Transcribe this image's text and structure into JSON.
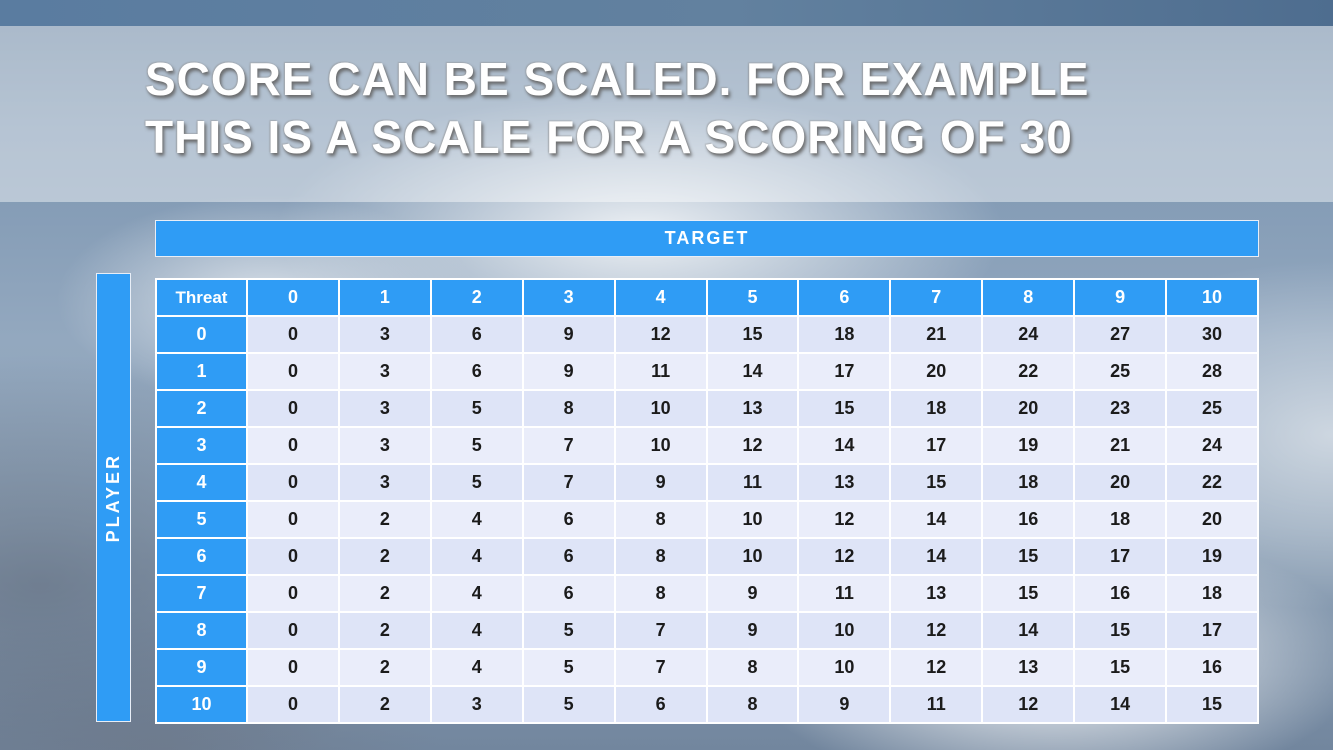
{
  "slide": {
    "title_line1": "SCORE CAN BE SCALED. FOR EXAMPLE",
    "title_line2": "THIS IS A SCALE FOR A SCORING OF 30"
  },
  "table": {
    "target_label": "TARGET",
    "player_label": "PLAYER",
    "corner_label": "Threat",
    "col_headers": [
      "0",
      "1",
      "2",
      "3",
      "4",
      "5",
      "6",
      "7",
      "8",
      "9",
      "10"
    ],
    "rows": [
      {
        "threat": "0",
        "values": [
          0,
          3,
          6,
          9,
          12,
          15,
          18,
          21,
          24,
          27,
          30
        ]
      },
      {
        "threat": "1",
        "values": [
          0,
          3,
          6,
          9,
          11,
          14,
          17,
          20,
          22,
          25,
          28
        ]
      },
      {
        "threat": "2",
        "values": [
          0,
          3,
          5,
          8,
          10,
          13,
          15,
          18,
          20,
          23,
          25
        ]
      },
      {
        "threat": "3",
        "values": [
          0,
          3,
          5,
          7,
          10,
          12,
          14,
          17,
          19,
          21,
          24
        ]
      },
      {
        "threat": "4",
        "values": [
          0,
          3,
          5,
          7,
          9,
          11,
          13,
          15,
          18,
          20,
          22
        ]
      },
      {
        "threat": "5",
        "values": [
          0,
          2,
          4,
          6,
          8,
          10,
          12,
          14,
          16,
          18,
          20
        ]
      },
      {
        "threat": "6",
        "values": [
          0,
          2,
          4,
          6,
          8,
          10,
          12,
          14,
          15,
          17,
          19
        ]
      },
      {
        "threat": "7",
        "values": [
          0,
          2,
          4,
          6,
          8,
          9,
          11,
          13,
          15,
          16,
          18
        ]
      },
      {
        "threat": "8",
        "values": [
          0,
          2,
          4,
          5,
          7,
          9,
          10,
          12,
          14,
          15,
          17
        ]
      },
      {
        "threat": "9",
        "values": [
          0,
          2,
          4,
          5,
          7,
          8,
          10,
          12,
          13,
          15,
          16
        ]
      },
      {
        "threat": "10",
        "values": [
          0,
          2,
          3,
          5,
          6,
          8,
          9,
          11,
          12,
          14,
          15
        ]
      }
    ]
  },
  "colors": {
    "accent_blue": "#2F9CF5",
    "row_shade_dark": "#DEE4F7",
    "row_shade_light": "#EAEDFA",
    "header_text": "#FFFFFF",
    "cell_text": "#1B1B1B",
    "title_text": "#FFFFFF"
  }
}
